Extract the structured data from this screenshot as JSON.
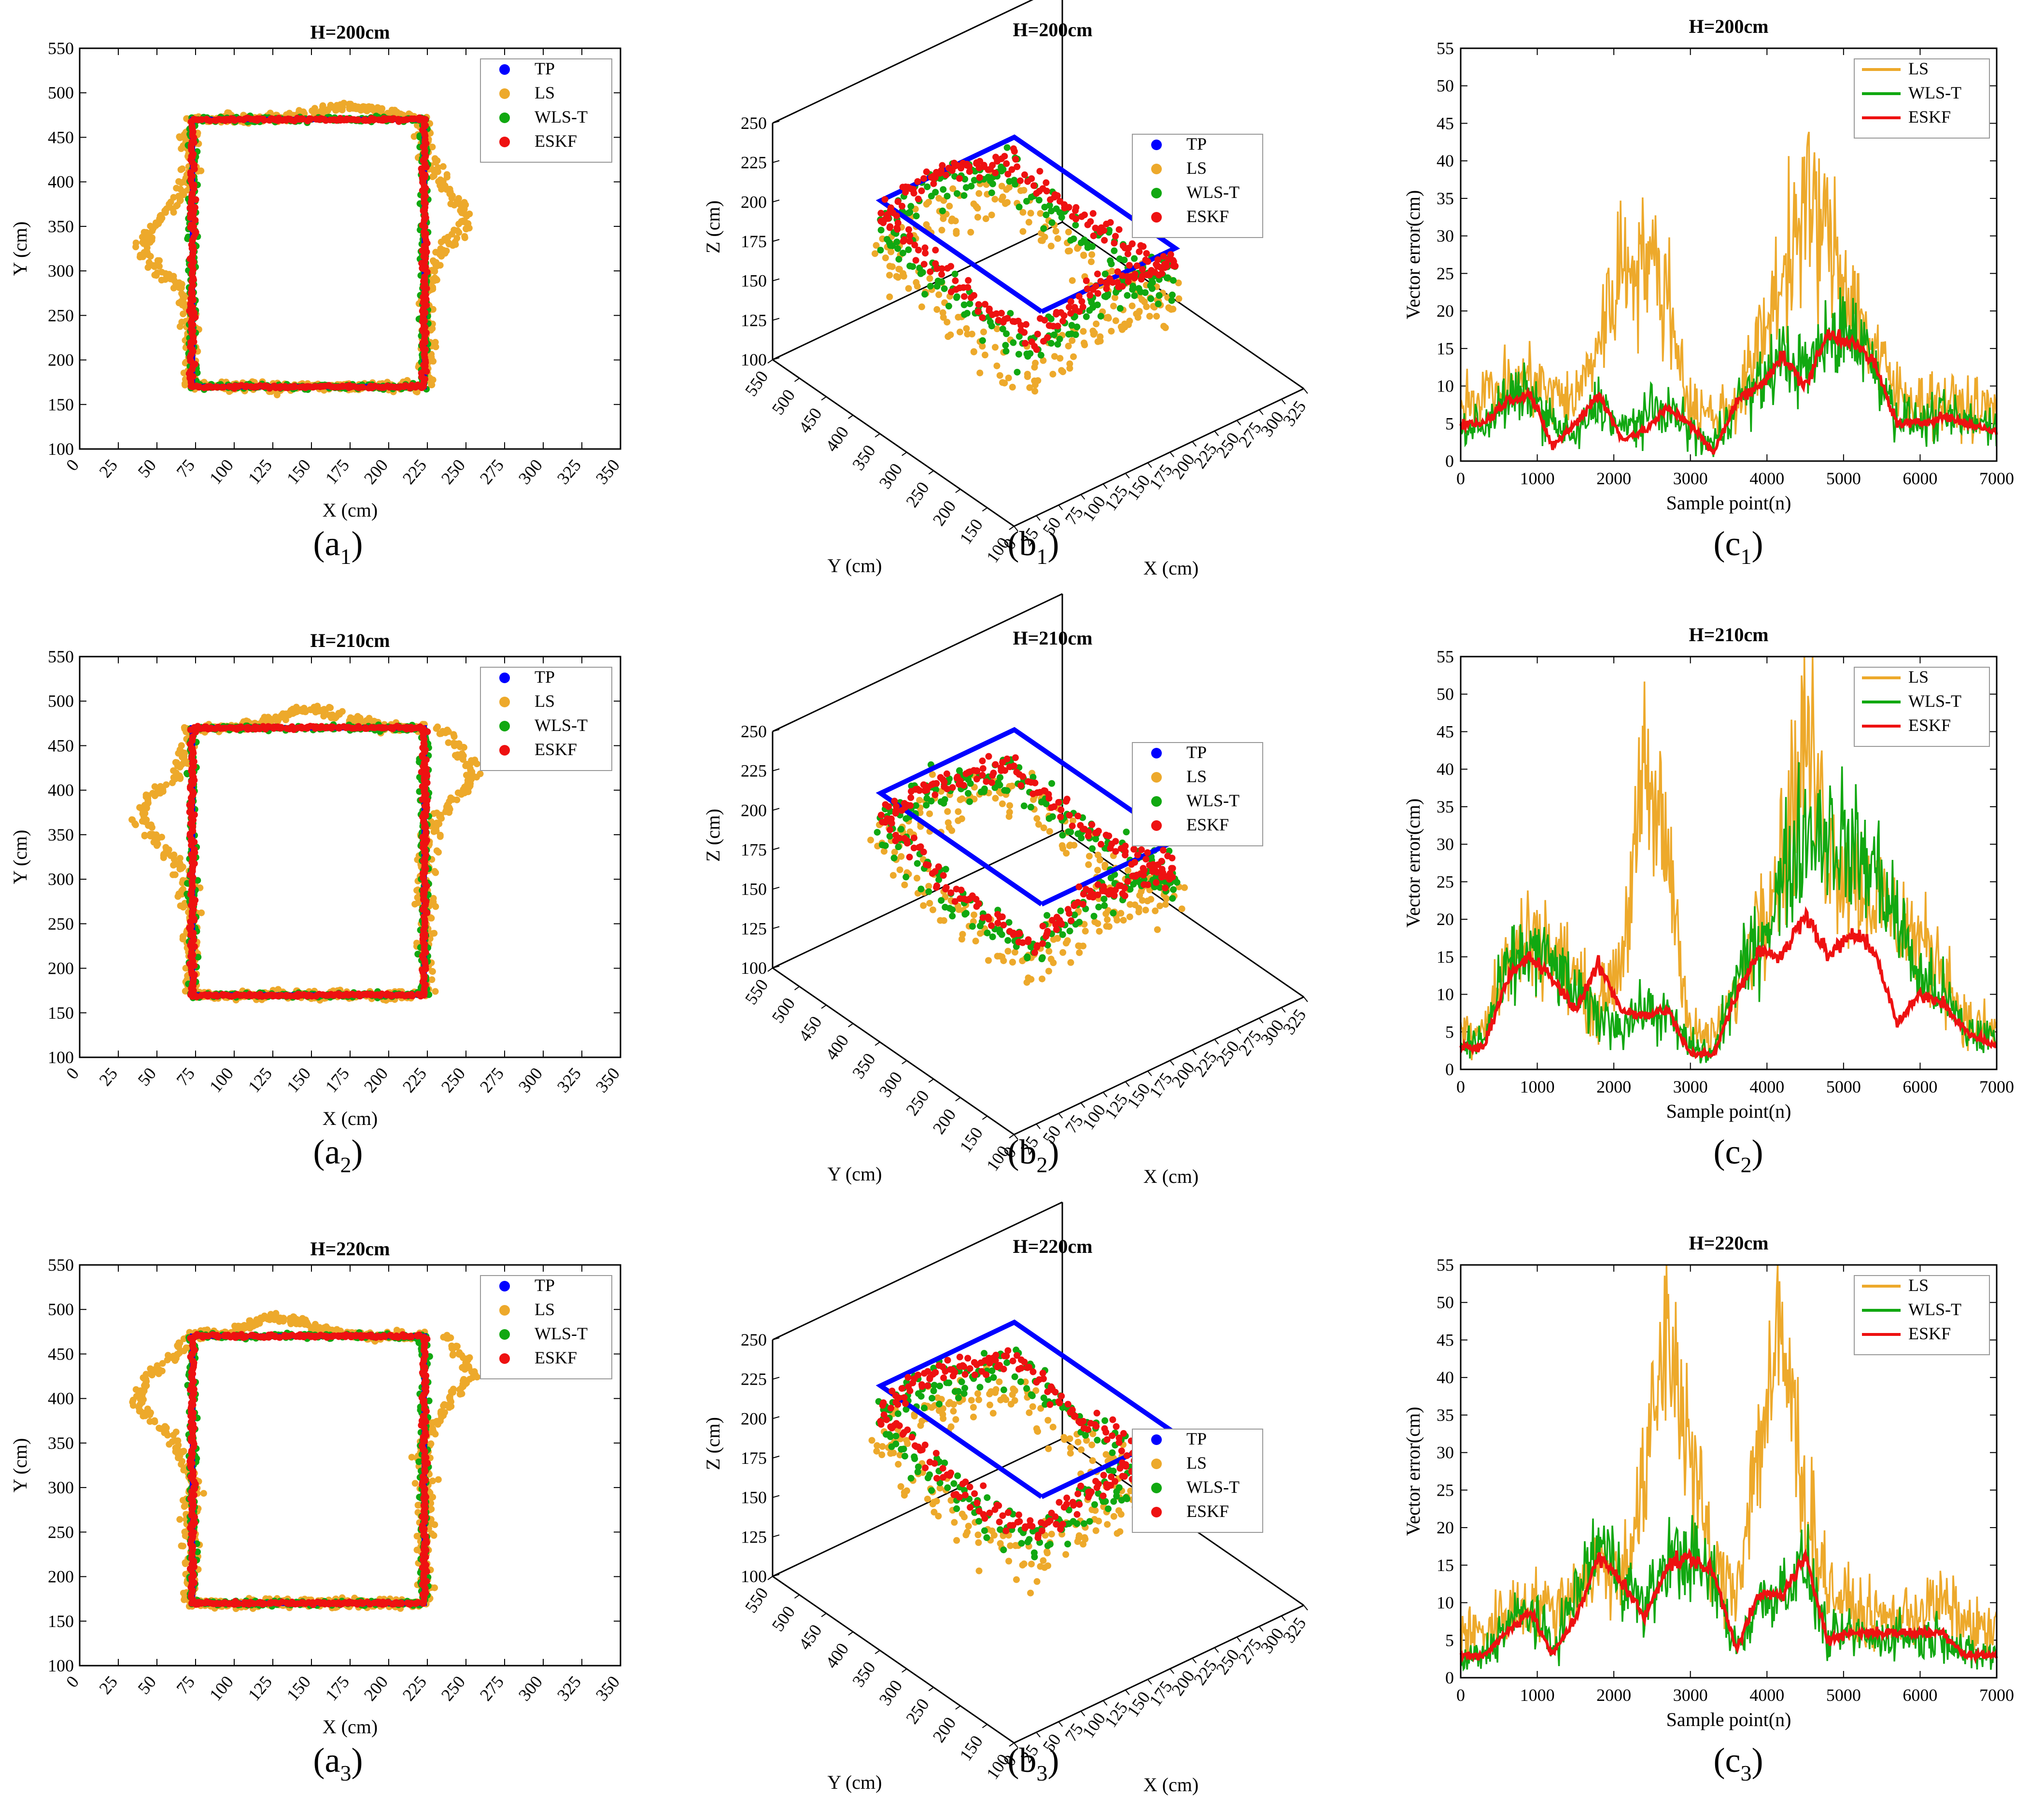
{
  "colors": {
    "TP": "#0000ff",
    "LS": "#eda92b",
    "WLS-T": "#11a811",
    "ESKF": "#ee1111",
    "axis": "#000000"
  },
  "chart_data": [
    {
      "id": "a1",
      "type": "scatter",
      "title": "H=200cm",
      "caption": "a",
      "caption_sub": "1",
      "xlabel": "X (cm)",
      "ylabel": "Y (cm)",
      "xlim": [
        0,
        350
      ],
      "ylim": [
        100,
        550
      ],
      "xticks": [
        "0",
        "25",
        "50",
        "75",
        "100",
        "125",
        "150",
        "175",
        "200",
        "225",
        "250",
        "275",
        "300",
        "325",
        "350"
      ],
      "yticks": [
        "100",
        "150",
        "200",
        "250",
        "300",
        "350",
        "400",
        "450",
        "500",
        "550"
      ],
      "legend": [
        "TP",
        "LS",
        "WLS-T",
        "ESKF"
      ],
      "legend_position": "top-right",
      "true_path": {
        "x": [
          73,
          223,
          223,
          73,
          73
        ],
        "y": [
          170,
          170,
          470,
          470,
          170
        ]
      },
      "ls_bulges": {
        "left": {
          "y": 330,
          "out": 30
        },
        "right": {
          "y": 360,
          "out": 25
        },
        "top": {
          "x": 175,
          "out": 14
        }
      }
    },
    {
      "id": "b1",
      "type": "scatter3d",
      "title": "H=200cm",
      "caption": "b",
      "caption_sub": "1",
      "xlabel": "X (cm)",
      "ylabel": "Y (cm)",
      "zlabel": "Z (cm)",
      "xlim": [
        0,
        325
      ],
      "ylim": [
        100,
        550
      ],
      "zlim": [
        100,
        250
      ],
      "xticks": [
        "0",
        "25",
        "50",
        "75",
        "100",
        "125",
        "150",
        "175",
        "200",
        "225",
        "250",
        "275",
        "300",
        "325"
      ],
      "yticks": [
        "100",
        "150",
        "200",
        "250",
        "300",
        "350",
        "400",
        "450",
        "500",
        "550"
      ],
      "zticks": [
        "100",
        "125",
        "150",
        "175",
        "200",
        "225",
        "250"
      ],
      "legend": [
        "TP",
        "LS",
        "WLS-T",
        "ESKF"
      ],
      "legend_position": "top-right",
      "true_path": {
        "x": [
          73,
          223,
          223,
          73,
          73
        ],
        "y": [
          170,
          170,
          470,
          470,
          170
        ],
        "z": [
          200,
          200,
          200,
          200,
          200
        ]
      },
      "mean_height": {
        "LS": 165,
        "WLS-T": 180,
        "ESKF": 188
      }
    },
    {
      "id": "c1",
      "type": "line",
      "title": "H=200cm",
      "caption": "c",
      "caption_sub": "1",
      "xlabel": "Sample point(n)",
      "ylabel": "Vector error(cm)",
      "xlim": [
        0,
        7000
      ],
      "ylim": [
        0,
        55
      ],
      "xticks": [
        "0",
        "1000",
        "2000",
        "3000",
        "4000",
        "5000",
        "6000",
        "7000"
      ],
      "yticks": [
        "0",
        "5",
        "10",
        "15",
        "20",
        "25",
        "30",
        "35",
        "40",
        "45",
        "50",
        "55"
      ],
      "legend": [
        "LS",
        "WLS-T",
        "ESKF"
      ],
      "legend_position": "top-right",
      "series": [
        {
          "name": "LS",
          "x": [
            0,
            300,
            600,
            900,
            1200,
            1500,
            1800,
            2100,
            2400,
            2700,
            3000,
            3300,
            3600,
            3900,
            4200,
            4500,
            4800,
            5100,
            5400,
            5700,
            6000,
            6300,
            6600,
            7000
          ],
          "values": [
            8,
            9,
            10,
            11,
            9,
            8,
            16,
            26,
            28,
            22,
            7,
            6,
            8,
            15,
            25,
            34,
            30,
            22,
            15,
            9,
            8,
            8,
            7,
            7
          ]
        },
        {
          "name": "WLS-T",
          "x": [
            0,
            300,
            600,
            900,
            1200,
            1500,
            1800,
            2100,
            2400,
            2700,
            3000,
            3300,
            3600,
            3900,
            4200,
            4500,
            4800,
            5100,
            5400,
            5700,
            6000,
            6300,
            6600,
            7000
          ],
          "values": [
            4,
            5,
            8,
            9,
            5,
            3,
            8,
            4,
            6,
            7,
            4,
            2,
            8,
            10,
            14,
            12,
            16,
            18,
            13,
            6,
            5,
            6,
            5,
            5
          ]
        },
        {
          "name": "ESKF",
          "x": [
            0,
            300,
            600,
            900,
            1200,
            1500,
            1800,
            2100,
            2400,
            2700,
            3000,
            3300,
            3600,
            3900,
            4200,
            4500,
            4800,
            5100,
            5400,
            5700,
            6000,
            6300,
            6600,
            7000
          ],
          "values": [
            5,
            5,
            8,
            9,
            2,
            5,
            9,
            3,
            4,
            7,
            5,
            1,
            8,
            10,
            14,
            10,
            17,
            16,
            13,
            5,
            5,
            6,
            5,
            4
          ]
        }
      ]
    },
    {
      "id": "a2",
      "type": "scatter",
      "title": "H=210cm",
      "caption": "a",
      "caption_sub": "2",
      "xlabel": "X (cm)",
      "ylabel": "Y (cm)",
      "xlim": [
        0,
        350
      ],
      "ylim": [
        100,
        550
      ],
      "xticks": [
        "0",
        "25",
        "50",
        "75",
        "100",
        "125",
        "150",
        "175",
        "200",
        "225",
        "250",
        "275",
        "300",
        "325",
        "350"
      ],
      "yticks": [
        "100",
        "150",
        "200",
        "250",
        "300",
        "350",
        "400",
        "450",
        "500",
        "550"
      ],
      "legend": [
        "TP",
        "LS",
        "WLS-T",
        "ESKF"
      ],
      "legend_position": "top-right",
      "true_path": {
        "x": [
          73,
          223,
          223,
          73,
          73
        ],
        "y": [
          170,
          170,
          470,
          470,
          170
        ]
      },
      "ls_bulges": {
        "left": {
          "y": 370,
          "out": 32
        },
        "right": {
          "y": 420,
          "out": 30
        },
        "top": {
          "x": 150,
          "out": 20
        }
      }
    },
    {
      "id": "b2",
      "type": "scatter3d",
      "title": "H=210cm",
      "caption": "b",
      "caption_sub": "2",
      "xlabel": "X (cm)",
      "ylabel": "Y (cm)",
      "zlabel": "Z (cm)",
      "xlim": [
        0,
        325
      ],
      "ylim": [
        100,
        550
      ],
      "zlim": [
        100,
        250
      ],
      "xticks": [
        "0",
        "25",
        "50",
        "75",
        "100",
        "125",
        "150",
        "175",
        "200",
        "225",
        "250",
        "275",
        "300",
        "325"
      ],
      "yticks": [
        "100",
        "150",
        "200",
        "250",
        "300",
        "350",
        "400",
        "450",
        "500",
        "550"
      ],
      "zticks": [
        "100",
        "125",
        "150",
        "175",
        "200",
        "225",
        "250"
      ],
      "legend": [
        "TP",
        "LS",
        "WLS-T",
        "ESKF"
      ],
      "legend_position": "top-right",
      "true_path": {
        "x": [
          73,
          223,
          223,
          73,
          73
        ],
        "y": [
          170,
          170,
          470,
          470,
          170
        ],
        "z": [
          210,
          210,
          210,
          210,
          210
        ]
      },
      "mean_height": {
        "LS": 175,
        "WLS-T": 185,
        "ESKF": 190
      }
    },
    {
      "id": "c2",
      "type": "line",
      "title": "H=210cm",
      "caption": "c",
      "caption_sub": "2",
      "xlabel": "Sample point(n)",
      "ylabel": "Vector error(cm)",
      "xlim": [
        0,
        7000
      ],
      "ylim": [
        0,
        55
      ],
      "xticks": [
        "0",
        "1000",
        "2000",
        "3000",
        "4000",
        "5000",
        "6000",
        "7000"
      ],
      "yticks": [
        "0",
        "5",
        "10",
        "15",
        "20",
        "25",
        "30",
        "35",
        "40",
        "45",
        "50",
        "55"
      ],
      "legend": [
        "LS",
        "WLS-T",
        "ESKF"
      ],
      "legend_position": "top-right",
      "series": [
        {
          "name": "LS",
          "x": [
            0,
            300,
            600,
            900,
            1200,
            1500,
            1800,
            2100,
            2400,
            2700,
            3000,
            3300,
            3600,
            3900,
            4200,
            4500,
            4800,
            5100,
            5400,
            5700,
            6000,
            6300,
            6600,
            7000
          ],
          "values": [
            5,
            6,
            14,
            18,
            16,
            12,
            8,
            15,
            38,
            30,
            5,
            4,
            10,
            22,
            28,
            45,
            30,
            26,
            23,
            20,
            17,
            14,
            6,
            5
          ]
        },
        {
          "name": "WLS-T",
          "x": [
            0,
            300,
            600,
            900,
            1200,
            1500,
            1800,
            2100,
            2400,
            2700,
            3000,
            3300,
            3600,
            3900,
            4200,
            4500,
            4800,
            5100,
            5400,
            5700,
            6000,
            6300,
            6600,
            7000
          ],
          "values": [
            3,
            4,
            13,
            16,
            14,
            10,
            7,
            6,
            8,
            7,
            3,
            2,
            12,
            17,
            25,
            32,
            32,
            29,
            27,
            20,
            12,
            10,
            5,
            4
          ]
        },
        {
          "name": "ESKF",
          "x": [
            0,
            300,
            600,
            900,
            1200,
            1500,
            1800,
            2100,
            2400,
            2700,
            3000,
            3300,
            3600,
            3900,
            4200,
            4500,
            4800,
            5100,
            5400,
            5700,
            6000,
            6300,
            6600,
            7000
          ],
          "values": [
            3,
            3,
            12,
            15,
            12,
            8,
            14,
            8,
            7,
            8,
            2,
            2,
            10,
            16,
            15,
            21,
            15,
            18,
            16,
            6,
            10,
            9,
            5,
            3
          ]
        }
      ]
    },
    {
      "id": "a3",
      "type": "scatter",
      "title": "H=220cm",
      "caption": "a",
      "caption_sub": "3",
      "xlabel": "X (cm)",
      "ylabel": "Y (cm)",
      "xlim": [
        0,
        350
      ],
      "ylim": [
        100,
        550
      ],
      "xticks": [
        "0",
        "25",
        "50",
        "75",
        "100",
        "125",
        "150",
        "175",
        "200",
        "225",
        "250",
        "275",
        "300",
        "325",
        "350"
      ],
      "yticks": [
        "100",
        "150",
        "200",
        "250",
        "300",
        "350",
        "400",
        "450",
        "500",
        "550"
      ],
      "legend": [
        "TP",
        "LS",
        "WLS-T",
        "ESKF"
      ],
      "legend_position": "top-right",
      "true_path": {
        "x": [
          73,
          223,
          223,
          73,
          73
        ],
        "y": [
          170,
          170,
          470,
          470,
          170
        ]
      },
      "ls_bulges": {
        "left": {
          "y": 400,
          "out": 35
        },
        "right": {
          "y": 430,
          "out": 28
        },
        "top": {
          "x": 130,
          "out": 20
        }
      }
    },
    {
      "id": "b3",
      "type": "scatter3d",
      "title": "H=220cm",
      "caption": "b",
      "caption_sub": "3",
      "xlabel": "X (cm)",
      "ylabel": "Y (cm)",
      "zlabel": "Z (cm)",
      "xlim": [
        0,
        325
      ],
      "ylim": [
        100,
        550
      ],
      "zlim": [
        100,
        250
      ],
      "xticks": [
        "0",
        "25",
        "50",
        "75",
        "100",
        "125",
        "150",
        "175",
        "200",
        "225",
        "250",
        "275",
        "300",
        "325"
      ],
      "yticks": [
        "100",
        "150",
        "200",
        "250",
        "300",
        "350",
        "400",
        "450",
        "500",
        "550"
      ],
      "zticks": [
        "100",
        "125",
        "150",
        "175",
        "200",
        "225",
        "250"
      ],
      "legend": [
        "TP",
        "LS",
        "WLS-T",
        "ESKF"
      ],
      "legend_position": "bottom-right",
      "true_path": {
        "x": [
          73,
          223,
          223,
          73,
          73
        ],
        "y": [
          170,
          170,
          470,
          470,
          170
        ],
        "z": [
          220,
          220,
          220,
          220,
          220
        ]
      },
      "mean_height": {
        "LS": 180,
        "WLS-T": 195,
        "ESKF": 200
      }
    },
    {
      "id": "c3",
      "type": "line",
      "title": "H=220cm",
      "caption": "c",
      "caption_sub": "3",
      "xlabel": "Sample point(n)",
      "ylabel": "Vector error(cm)",
      "xlim": [
        0,
        7000
      ],
      "ylim": [
        0,
        55
      ],
      "xticks": [
        "0",
        "1000",
        "2000",
        "3000",
        "4000",
        "5000",
        "6000",
        "7000"
      ],
      "yticks": [
        "0",
        "5",
        "10",
        "15",
        "20",
        "25",
        "30",
        "35",
        "40",
        "45",
        "50",
        "55"
      ],
      "legend": [
        "LS",
        "WLS-T",
        "ESKF"
      ],
      "legend_position": "top-right",
      "series": [
        {
          "name": "LS",
          "x": [
            0,
            300,
            600,
            900,
            1200,
            1500,
            1800,
            2100,
            2400,
            2700,
            3000,
            3300,
            3600,
            3900,
            4200,
            4500,
            4800,
            5100,
            5400,
            5700,
            6000,
            6300,
            6600,
            7000
          ],
          "values": [
            6,
            6,
            9,
            10,
            9,
            12,
            15,
            14,
            25,
            48,
            30,
            14,
            12,
            32,
            45,
            24,
            12,
            9,
            8,
            8,
            9,
            10,
            7,
            6
          ]
        },
        {
          "name": "WLS-T",
          "x": [
            0,
            300,
            600,
            900,
            1200,
            1500,
            1800,
            2100,
            2400,
            2700,
            3000,
            3300,
            3600,
            3900,
            4200,
            4500,
            4800,
            5100,
            5400,
            5700,
            6000,
            6300,
            6600,
            7000
          ],
          "values": [
            2,
            3,
            7,
            9,
            4,
            11,
            18,
            14,
            9,
            16,
            16,
            13,
            4,
            10,
            12,
            15,
            5,
            6,
            5,
            6,
            5,
            6,
            3,
            3
          ]
        },
        {
          "name": "ESKF",
          "x": [
            0,
            300,
            600,
            900,
            1200,
            1500,
            1800,
            2100,
            2400,
            2700,
            3000,
            3300,
            3600,
            3900,
            4200,
            4500,
            4800,
            5100,
            5400,
            5700,
            6000,
            6300,
            6600,
            7000
          ],
          "values": [
            3,
            3,
            6,
            9,
            3,
            8,
            16,
            13,
            8,
            15,
            16,
            14,
            4,
            11,
            11,
            16,
            5,
            6,
            6,
            6,
            6,
            6,
            3,
            3
          ]
        }
      ]
    }
  ]
}
